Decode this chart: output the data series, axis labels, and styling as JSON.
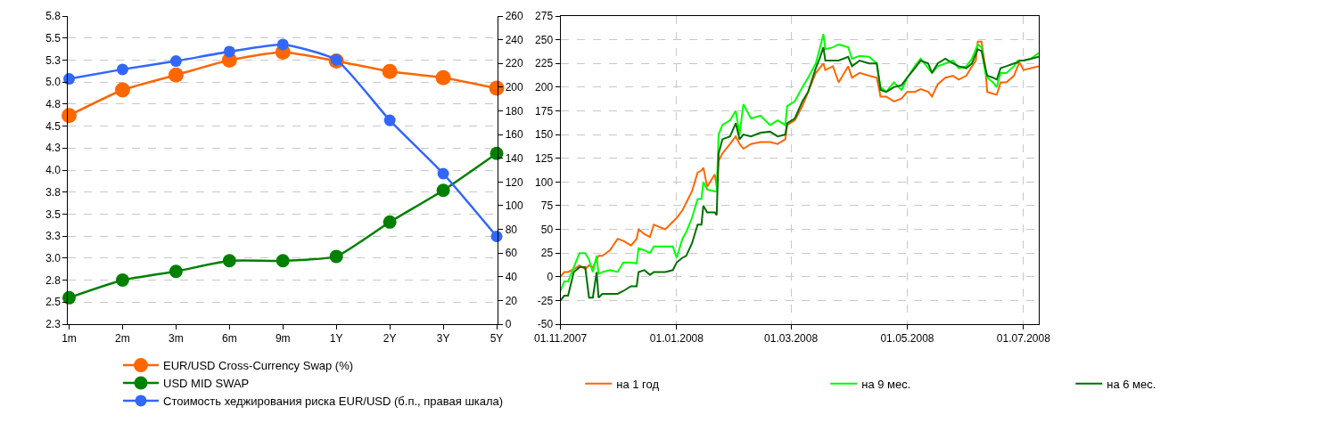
{
  "chart_data": [
    {
      "type": "line",
      "categories": [
        "1m",
        "2m",
        "3m",
        "6m",
        "9m",
        "1Y",
        "2Y",
        "3Y",
        "5Y"
      ],
      "series": [
        {
          "name": "EUR/USD Cross-Currency Swap (%)",
          "color": "#ff6600",
          "values": [
            4.62,
            4.91,
            5.08,
            5.25,
            5.34,
            5.24,
            5.12,
            5.05,
            4.93
          ]
        },
        {
          "name": "USD MID SWAP",
          "color": "#008000",
          "values": [
            2.55,
            2.75,
            2.85,
            2.97,
            2.97,
            3.02,
            3.41,
            3.77,
            4.19
          ]
        },
        {
          "name": "Стоимость хеджирования риска EUR/USD (б.п., правая шкала)",
          "color": "#3366ff",
          "axis": "y2",
          "values": [
            207,
            215,
            222,
            230,
            236,
            223,
            172,
            127,
            74
          ]
        }
      ],
      "ylim": [
        2.25,
        5.75
      ],
      "yticks": [
        {
          "value": 2.25,
          "label": "2.3"
        },
        {
          "value": 2.5,
          "label": "2.5"
        },
        {
          "value": 2.75,
          "label": "2.8"
        },
        {
          "value": 3.0,
          "label": "3.0"
        },
        {
          "value": 3.25,
          "label": "3.3"
        },
        {
          "value": 3.5,
          "label": "3.5"
        },
        {
          "value": 3.75,
          "label": "3.8"
        },
        {
          "value": 4.0,
          "label": "4.0"
        },
        {
          "value": 4.25,
          "label": "4.3"
        },
        {
          "value": 4.5,
          "label": "4.5"
        },
        {
          "value": 4.75,
          "label": "4.8"
        },
        {
          "value": 5.0,
          "label": "5.0"
        },
        {
          "value": 5.25,
          "label": "5.3"
        },
        {
          "value": 5.5,
          "label": "5.5"
        },
        {
          "value": 5.75,
          "label": "5.8"
        }
      ],
      "y2lim": [
        0,
        260
      ],
      "y2ticks": [
        0,
        20,
        40,
        60,
        80,
        100,
        120,
        140,
        160,
        180,
        200,
        220,
        240,
        260
      ],
      "grid": "y",
      "legend": "bottom",
      "marker": "circle",
      "line_style": "solid"
    },
    {
      "type": "line",
      "x": [
        "2007-11-01",
        "2007-11-03",
        "2007-11-05",
        "2007-11-08",
        "2007-11-11",
        "2007-11-14",
        "2007-11-16",
        "2007-11-18",
        "2007-11-20",
        "2007-11-21",
        "2007-11-23",
        "2007-11-27",
        "2007-12-01",
        "2007-12-04",
        "2007-12-08",
        "2007-12-11",
        "2007-12-12",
        "2007-12-15",
        "2007-12-18",
        "2007-12-20",
        "2007-12-26",
        "2007-12-30",
        "2008-01-01",
        "2008-01-04",
        "2008-01-06",
        "2008-01-09",
        "2008-01-12",
        "2008-01-14",
        "2008-01-15",
        "2008-01-17",
        "2008-01-21",
        "2008-01-22",
        "2008-01-23",
        "2008-01-25",
        "2008-01-29",
        "2008-02-01",
        "2008-02-03",
        "2008-02-05",
        "2008-02-09",
        "2008-02-14",
        "2008-02-19",
        "2008-02-23",
        "2008-02-27",
        "2008-02-28",
        "2008-03-03",
        "2008-03-07",
        "2008-03-10",
        "2008-03-14",
        "2008-03-16",
        "2008-03-18",
        "2008-03-19",
        "2008-03-23",
        "2008-03-26",
        "2008-03-31",
        "2008-04-02",
        "2008-04-06",
        "2008-04-11",
        "2008-04-15",
        "2008-04-17",
        "2008-04-20",
        "2008-04-24",
        "2008-04-28",
        "2008-05-01",
        "2008-05-05",
        "2008-05-08",
        "2008-05-12",
        "2008-05-14",
        "2008-05-17",
        "2008-05-21",
        "2008-05-25",
        "2008-05-28",
        "2008-06-01",
        "2008-06-04",
        "2008-06-06",
        "2008-06-07",
        "2008-06-09",
        "2008-06-11",
        "2008-06-12",
        "2008-06-15",
        "2008-06-17",
        "2008-06-19",
        "2008-06-22",
        "2008-06-26",
        "2008-06-28",
        "2008-06-29",
        "2008-07-01",
        "2008-07-05",
        "2008-07-09"
      ],
      "series": [
        {
          "name": "на 1 год",
          "color": "#ff6600",
          "values": [
            0,
            5,
            5,
            8,
            12,
            8,
            12,
            10,
            18,
            22,
            22,
            28,
            40,
            38,
            33,
            40,
            50,
            45,
            42,
            55,
            50,
            58,
            62,
            70,
            78,
            90,
            110,
            112,
            115,
            95,
            108,
            95,
            122,
            130,
            140,
            148,
            140,
            135,
            140,
            142,
            142,
            140,
            145,
            160,
            165,
            180,
            195,
            215,
            220,
            225,
            218,
            222,
            205,
            222,
            210,
            215,
            212,
            210,
            190,
            190,
            185,
            188,
            195,
            195,
            198,
            195,
            190,
            203,
            210,
            212,
            208,
            212,
            222,
            228,
            248,
            248,
            220,
            195,
            193,
            192,
            205,
            205,
            212,
            222,
            226,
            218,
            220,
            222
          ]
        },
        {
          "name": "на 9 мес.",
          "color": "#00ff00",
          "values": [
            -15,
            -5,
            -5,
            10,
            25,
            25,
            18,
            5,
            22,
            3,
            5,
            7,
            5,
            15,
            15,
            14,
            30,
            28,
            25,
            32,
            32,
            32,
            20,
            40,
            47,
            62,
            82,
            82,
            100,
            92,
            90,
            90,
            150,
            160,
            165,
            175,
            150,
            182,
            167,
            170,
            160,
            165,
            160,
            180,
            185,
            200,
            210,
            225,
            240,
            256,
            240,
            242,
            245,
            242,
            230,
            233,
            232,
            225,
            200,
            195,
            205,
            197,
            210,
            222,
            230,
            220,
            215,
            222,
            225,
            228,
            220,
            222,
            230,
            240,
            245,
            242,
            215,
            210,
            205,
            200,
            215,
            215,
            222,
            228,
            228,
            228,
            230,
            236
          ]
        },
        {
          "name": "на 6 мес.",
          "color": "#007000",
          "values": [
            -25,
            -20,
            -20,
            5,
            10,
            10,
            -22,
            -22,
            5,
            -22,
            -18,
            -18,
            -18,
            -15,
            -10,
            -10,
            5,
            7,
            2,
            5,
            5,
            7,
            15,
            20,
            22,
            35,
            55,
            55,
            75,
            68,
            68,
            65,
            130,
            145,
            148,
            162,
            145,
            150,
            148,
            152,
            153,
            148,
            150,
            162,
            167,
            185,
            195,
            220,
            230,
            242,
            228,
            228,
            228,
            232,
            222,
            228,
            225,
            225,
            197,
            195,
            200,
            202,
            210,
            220,
            228,
            225,
            215,
            225,
            230,
            225,
            222,
            220,
            225,
            235,
            240,
            238,
            220,
            212,
            210,
            208,
            220,
            222,
            225,
            226,
            228,
            228,
            230,
            232
          ]
        }
      ],
      "xlim": [
        "2007-11-01",
        "2008-07-09"
      ],
      "xticks": [
        {
          "value": "2007-11-01",
          "label": "01.11.2007"
        },
        {
          "value": "2008-01-01",
          "label": "01.01.2008"
        },
        {
          "value": "2008-03-01",
          "label": "01.03.2008"
        },
        {
          "value": "2008-05-01",
          "label": "01.05.2008"
        },
        {
          "value": "2008-07-01",
          "label": "01.07.2008"
        }
      ],
      "ylim": [
        -50,
        275
      ],
      "yticks": [
        -50,
        -25,
        0,
        25,
        50,
        75,
        100,
        125,
        150,
        175,
        200,
        225,
        250,
        275
      ],
      "grid": true,
      "legend": "bottom",
      "marker": "none",
      "line_style": "solid"
    }
  ]
}
